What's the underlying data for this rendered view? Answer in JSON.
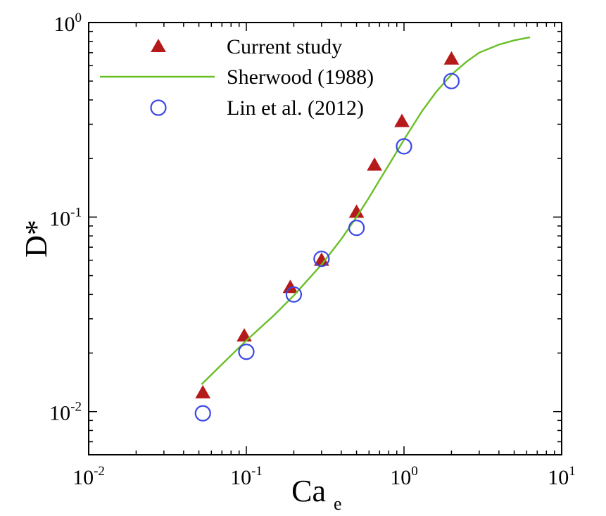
{
  "chart_data": {
    "type": "scatter",
    "title": "",
    "xlabel": "Ca",
    "xlabel_subscript": "e",
    "ylabel": "D*",
    "xscale": "log",
    "yscale": "log",
    "xlim": [
      0.01,
      10
    ],
    "ylim": [
      0.006,
      1
    ],
    "grid": false,
    "legend_position": "top-left",
    "x_ticks": [
      {
        "value": 0.01,
        "base": "10",
        "exp": "-2"
      },
      {
        "value": 0.1,
        "base": "10",
        "exp": "-1"
      },
      {
        "value": 1,
        "base": "10",
        "exp": "0"
      },
      {
        "value": 10,
        "base": "10",
        "exp": "1"
      }
    ],
    "y_ticks": [
      {
        "value": 0.01,
        "base": "10",
        "exp": "-2"
      },
      {
        "value": 0.1,
        "base": "10",
        "exp": "-1"
      },
      {
        "value": 1,
        "base": "10",
        "exp": "0"
      }
    ],
    "series": [
      {
        "name": "Current study",
        "kind": "marker",
        "marker": "triangle",
        "color": "#b41a1a",
        "x": [
          0.053,
          0.097,
          0.19,
          0.3,
          0.5,
          0.65,
          0.97,
          2.0
        ],
        "y": [
          0.0125,
          0.0245,
          0.0435,
          0.06,
          0.106,
          0.185,
          0.31,
          0.65
        ]
      },
      {
        "name": "Sherwood (1988)",
        "kind": "line",
        "color": "#6abf27",
        "x": [
          0.052,
          0.07,
          0.1,
          0.15,
          0.2,
          0.3,
          0.4,
          0.5,
          0.6,
          0.7,
          0.8,
          1.0,
          1.3,
          1.6,
          2.0,
          2.5,
          3.0,
          4.0,
          5.0,
          6.3
        ],
        "y": [
          0.0138,
          0.0175,
          0.0232,
          0.0313,
          0.0395,
          0.057,
          0.077,
          0.1,
          0.126,
          0.155,
          0.185,
          0.25,
          0.35,
          0.44,
          0.54,
          0.63,
          0.7,
          0.77,
          0.81,
          0.84
        ]
      },
      {
        "name": "Lin et al. (2012)",
        "kind": "marker",
        "marker": "open-circle",
        "color": "#3a47e6",
        "x": [
          0.053,
          0.1,
          0.2,
          0.3,
          0.5,
          1.0,
          2.0
        ],
        "y": [
          0.0098,
          0.0203,
          0.04,
          0.061,
          0.088,
          0.231,
          0.5
        ]
      }
    ]
  }
}
